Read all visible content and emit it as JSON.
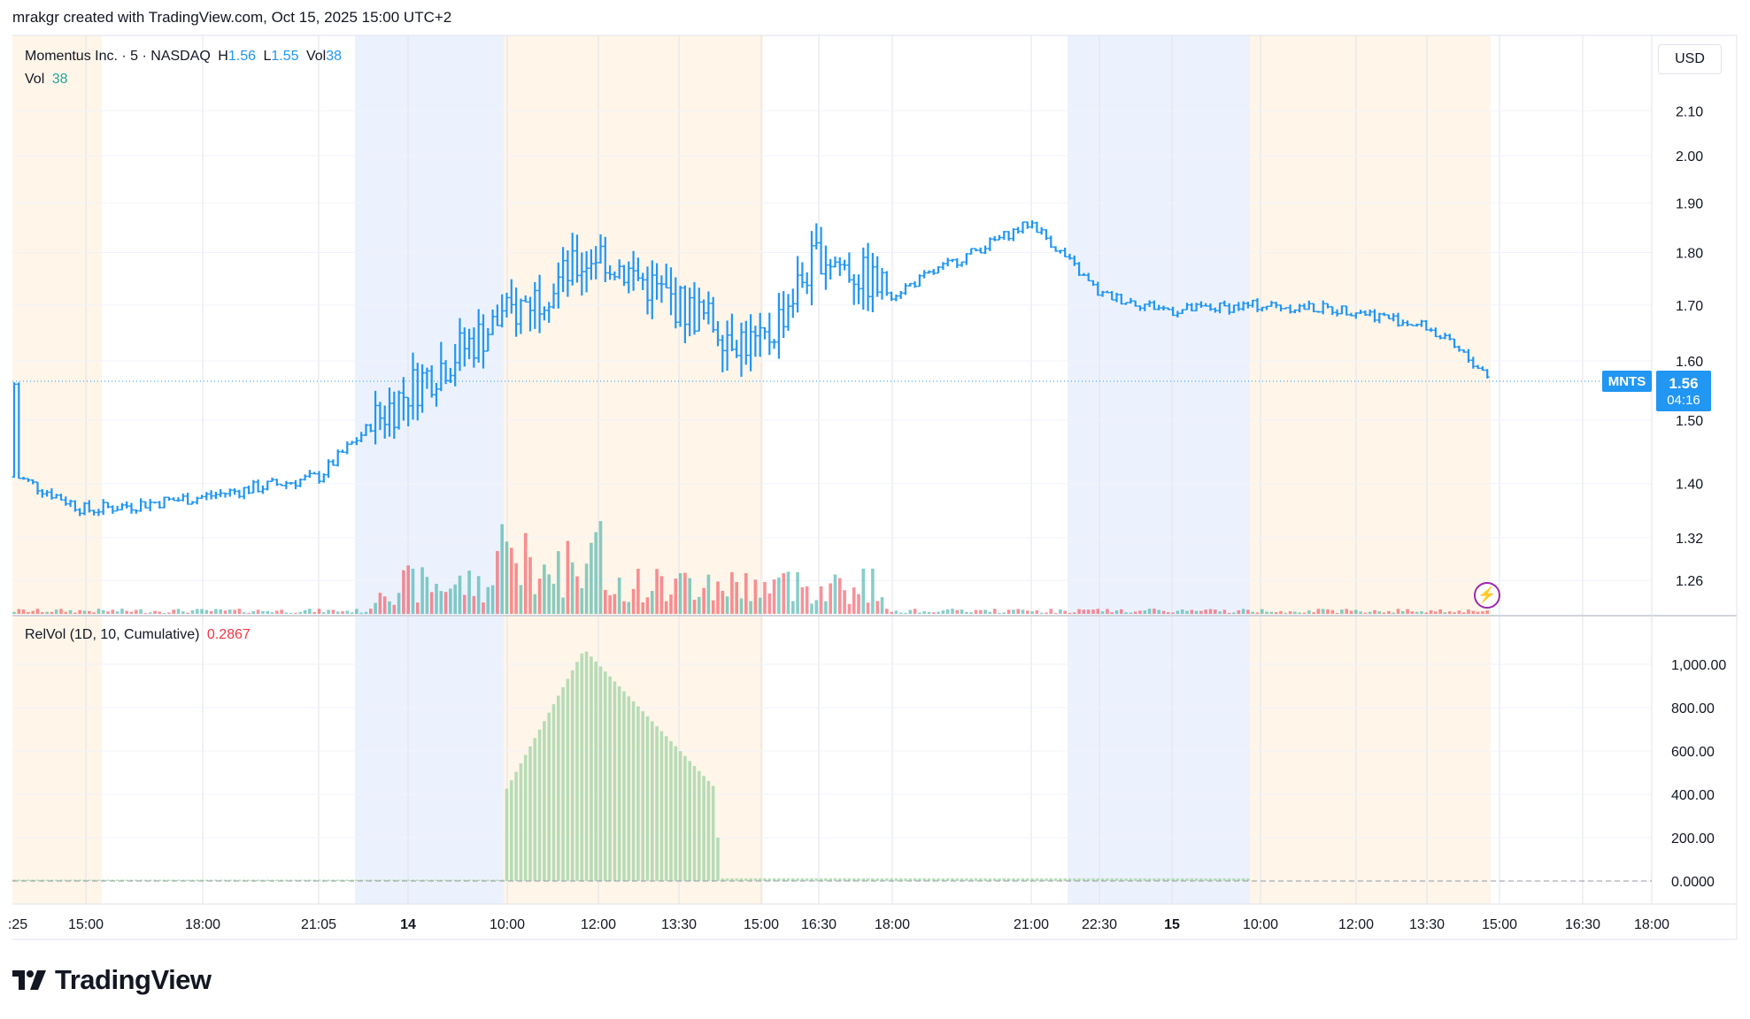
{
  "header": {
    "text": "mrakgr created with TradingView.com, Oct 15, 2025 15:00 UTC+2"
  },
  "legend": {
    "title": "Momentus Inc. · 5 · NASDAQ",
    "h_label": "H",
    "h_value": "1.56",
    "l_label": "L",
    "l_value": "1.55",
    "vol_label": "Vol",
    "vol_value": "38",
    "vol_row_label": "Vol",
    "vol_row_value": "38",
    "relvol_label": "RelVol (1D, 10, Cumulative)",
    "relvol_value": "0.2867"
  },
  "currency": "USD",
  "last_price": {
    "symbol": "MNTS",
    "price": "1.56",
    "countdown": "04:16"
  },
  "brand": {
    "name": "TradingView"
  },
  "colors": {
    "up": "#2196f3",
    "vol_up": "#26a69a",
    "vol_down": "#f23645",
    "relvol": "#a5d6a7",
    "session_pre": "#fff5e9",
    "session_post": "#ecf2fd"
  },
  "chart_data": [
    {
      "type": "bar",
      "title": "Momentus Inc. · 5 · NASDAQ",
      "y_scale": "log",
      "y_ticks": [
        "2.10",
        "2.00",
        "1.90",
        "1.80",
        "1.70",
        "1.60",
        "1.50",
        "1.40",
        "1.32",
        "1.26"
      ],
      "x_ticks": [
        ":25",
        "15:00",
        "18:00",
        "21:05",
        "14",
        "10:00",
        "12:00",
        "13:30",
        "15:00",
        "16:30",
        "18:00",
        "21:00",
        "22:30",
        "15",
        "10:00",
        "12:00",
        "13:30",
        "15:00",
        "16:30",
        "18:00"
      ],
      "series": [
        {
          "name": "MNTS",
          "x": [
            ":25",
            "15:00",
            "18:00",
            "21:05",
            "14",
            "10:00",
            "12:00",
            "13:30",
            "15:00",
            "16:30",
            "18:00",
            "21:00",
            "22:30",
            "15",
            "10:00",
            "12:00",
            "13:30",
            "15:00"
          ],
          "values": [
            1.41,
            1.36,
            1.38,
            1.41,
            1.55,
            1.68,
            1.8,
            1.7,
            1.62,
            1.8,
            1.72,
            1.86,
            1.72,
            1.69,
            1.7,
            1.69,
            1.66,
            1.56
          ]
        }
      ],
      "last_price": 1.56
    },
    {
      "type": "bar",
      "title": "RelVol (1D, 10, Cumulative)",
      "y_ticks": [
        "1,000.00",
        "800.00",
        "600.00",
        "400.00",
        "200.00",
        "0.0000"
      ],
      "ylim": [
        0,
        1100
      ],
      "peak_value": 1070,
      "last_value": 0.2867
    }
  ]
}
